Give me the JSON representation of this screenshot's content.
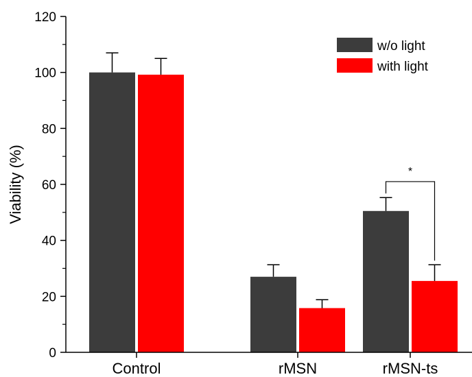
{
  "chart_data": {
    "type": "bar",
    "title": "",
    "xlabel": "",
    "ylabel": "Viability (%)",
    "ylim": [
      0,
      120
    ],
    "yticks": [
      0,
      20,
      40,
      60,
      80,
      100,
      120
    ],
    "categories": [
      "Control",
      "rMSN",
      "rMSN-ts"
    ],
    "series": [
      {
        "name": "w/o light",
        "color": "#3c3c3c",
        "values": [
          100,
          27,
          50.5
        ],
        "errors": [
          7,
          4.3,
          4.8
        ]
      },
      {
        "name": "with light",
        "color": "#ff0000",
        "values": [
          99.2,
          15.8,
          25.5
        ],
        "errors": [
          5.8,
          3,
          5.8
        ]
      }
    ],
    "legend_position": "top-right",
    "grid": false,
    "annotations": [
      {
        "text": "*",
        "category": "rMSN-ts",
        "type": "significance-bracket"
      }
    ]
  }
}
